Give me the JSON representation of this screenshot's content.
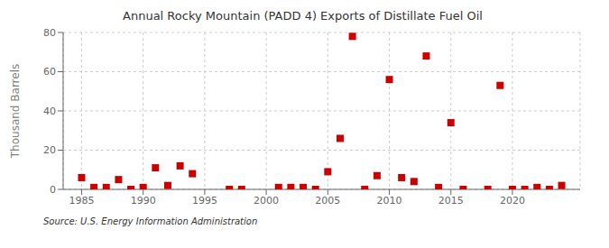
{
  "chart_data": {
    "type": "scatter",
    "title": "Annual Rocky Mountain (PADD 4) Exports of Distillate Fuel Oil",
    "ylabel": "Thousand Barrels",
    "source": "Source: U.S. Energy Information Administration",
    "x": [
      1985,
      1986,
      1987,
      1988,
      1989,
      1990,
      1991,
      1992,
      1993,
      1994,
      1997,
      1998,
      2001,
      2002,
      2003,
      2004,
      2005,
      2006,
      2007,
      2008,
      2009,
      2010,
      2011,
      2012,
      2013,
      2014,
      2015,
      2016,
      2018,
      2019,
      2020,
      2021,
      2022,
      2023,
      2024
    ],
    "values": [
      6,
      1,
      1,
      5,
      0,
      1,
      11,
      2,
      12,
      8,
      0,
      0,
      1,
      1,
      1,
      0,
      9,
      26,
      78,
      0,
      7,
      56,
      6,
      4,
      68,
      1,
      34,
      0,
      0,
      53,
      0,
      0,
      1,
      0,
      2
    ],
    "color": "#cc0000",
    "marker": "square",
    "xlim": [
      1983.5,
      2025.5
    ],
    "ylim": [
      0,
      80
    ],
    "xticks": [
      1985,
      1990,
      1995,
      2000,
      2005,
      2010,
      2015,
      2020
    ],
    "yticks": [
      0,
      20,
      40,
      60,
      80
    ],
    "grid": true
  }
}
